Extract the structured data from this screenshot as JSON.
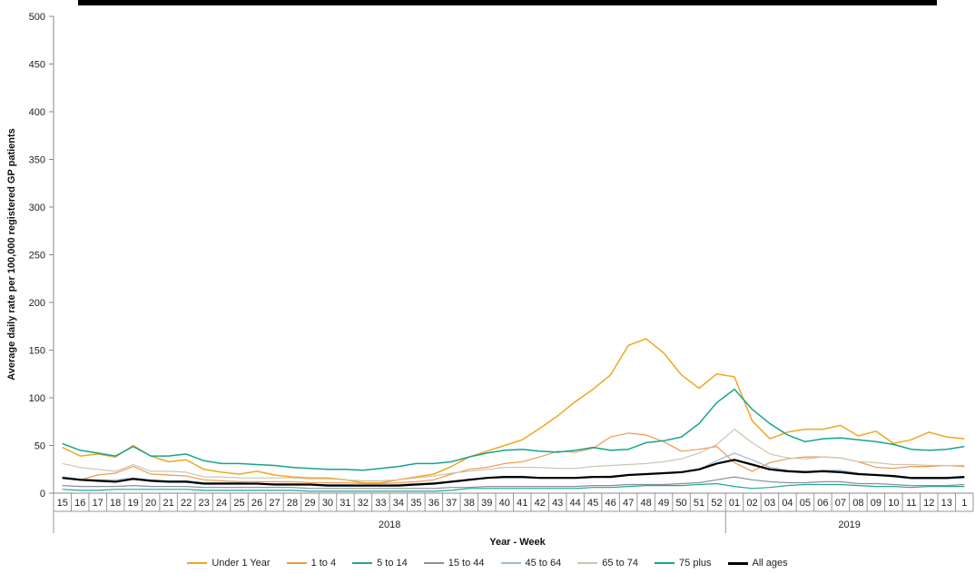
{
  "chart_data": {
    "type": "line",
    "ylabel": "Average daily rate per 100,000 registered GP patients",
    "xlabel": "Year - Week",
    "ylim": [
      0,
      500
    ],
    "yticks": [
      0,
      50,
      100,
      150,
      200,
      250,
      300,
      350,
      400,
      450,
      500
    ],
    "grid": false,
    "legend_position": "bottom",
    "x": [
      "15",
      "16",
      "17",
      "18",
      "19",
      "20",
      "21",
      "22",
      "23",
      "24",
      "25",
      "26",
      "27",
      "28",
      "29",
      "30",
      "31",
      "32",
      "33",
      "34",
      "35",
      "36",
      "37",
      "38",
      "39",
      "40",
      "41",
      "42",
      "43",
      "44",
      "45",
      "46",
      "47",
      "48",
      "49",
      "50",
      "51",
      "52",
      "01",
      "02",
      "03",
      "04",
      "05",
      "06",
      "07",
      "08",
      "09",
      "10",
      "11",
      "12",
      "13",
      "1"
    ],
    "year_groups": [
      {
        "label": "2018",
        "start": 0,
        "end": 37
      },
      {
        "label": "2019",
        "start": 38,
        "end": 51
      }
    ],
    "series": [
      {
        "name": "Under 1 Year",
        "color": "#f0a71f",
        "width": 1.5,
        "values": [
          48,
          39,
          41,
          38,
          50,
          39,
          33,
          35,
          25,
          22,
          20,
          23,
          19,
          17,
          16,
          16,
          14,
          11,
          11,
          14,
          17,
          20,
          28,
          38,
          44,
          50,
          56,
          68,
          81,
          96,
          109,
          124,
          155,
          162,
          147,
          124,
          110,
          125,
          122,
          76,
          57,
          64,
          67,
          67,
          71,
          60,
          65,
          52,
          56,
          64,
          59,
          57
        ]
      },
      {
        "name": "1 to 4",
        "color": "#ef9a4e",
        "width": 1.2,
        "values": [
          16,
          14,
          19,
          21,
          28,
          20,
          19,
          18,
          14,
          13,
          12,
          12,
          12,
          12,
          11,
          11,
          11,
          10,
          10,
          11,
          12,
          14,
          20,
          25,
          27,
          31,
          33,
          38,
          44,
          43,
          47,
          59,
          63,
          61,
          54,
          44,
          46,
          49,
          32,
          23,
          32,
          36,
          38,
          38,
          37,
          33,
          27,
          26,
          28,
          28,
          29,
          28
        ]
      },
      {
        "name": "5 to 14",
        "color": "#1fa898",
        "width": 1.2,
        "values": [
          4,
          3,
          3,
          4,
          4,
          4,
          4,
          4,
          3,
          3,
          3,
          3,
          3,
          3,
          2,
          2,
          2,
          2,
          2,
          2,
          2,
          2,
          3,
          5,
          5,
          5,
          5,
          5,
          5,
          5,
          6,
          6,
          7,
          8,
          8,
          8,
          9,
          10,
          7,
          5,
          6,
          8,
          9,
          9,
          9,
          8,
          7,
          7,
          6,
          7,
          7,
          7
        ]
      },
      {
        "name": "15 to 44",
        "color": "#8a8f9a",
        "width": 1.2,
        "values": [
          8,
          7,
          7,
          7,
          8,
          7,
          7,
          7,
          6,
          6,
          6,
          6,
          6,
          6,
          5,
          5,
          5,
          5,
          5,
          5,
          5,
          5,
          6,
          6,
          7,
          7,
          7,
          7,
          7,
          7,
          8,
          8,
          9,
          9,
          9,
          10,
          11,
          14,
          17,
          14,
          12,
          11,
          11,
          12,
          12,
          10,
          10,
          9,
          8,
          8,
          8,
          9
        ]
      },
      {
        "name": "45 to 64",
        "color": "#9fbad3",
        "width": 1.2,
        "values": [
          17,
          15,
          14,
          14,
          16,
          14,
          13,
          13,
          11,
          11,
          11,
          10,
          10,
          10,
          9,
          9,
          9,
          8,
          8,
          9,
          10,
          11,
          12,
          15,
          16,
          16,
          16,
          16,
          16,
          16,
          17,
          18,
          19,
          20,
          21,
          22,
          25,
          34,
          42,
          35,
          27,
          24,
          23,
          24,
          24,
          21,
          19,
          17,
          15,
          15,
          15,
          16
        ]
      },
      {
        "name": "65 to 74",
        "color": "#cbc6b1",
        "width": 1.2,
        "values": [
          31,
          27,
          25,
          23,
          30,
          23,
          23,
          22,
          17,
          17,
          16,
          16,
          16,
          16,
          15,
          15,
          14,
          13,
          13,
          14,
          16,
          18,
          21,
          23,
          25,
          27,
          27,
          27,
          26,
          26,
          28,
          29,
          30,
          31,
          33,
          36,
          42,
          51,
          67,
          53,
          41,
          37,
          36,
          38,
          37,
          33,
          32,
          30,
          30,
          29,
          29,
          29
        ]
      },
      {
        "name": "75 plus",
        "color": "#14a58e",
        "width": 1.5,
        "values": [
          52,
          45,
          42,
          39,
          49,
          39,
          39,
          41,
          34,
          31,
          31,
          30,
          29,
          27,
          26,
          25,
          25,
          24,
          26,
          28,
          31,
          31,
          33,
          38,
          42,
          45,
          46,
          44,
          43,
          45,
          48,
          45,
          46,
          53,
          55,
          59,
          73,
          95,
          109,
          88,
          73,
          61,
          54,
          57,
          58,
          56,
          54,
          51,
          46,
          45,
          46,
          49
        ]
      },
      {
        "name": "All ages",
        "color": "#000000",
        "width": 2.2,
        "values": [
          16,
          14,
          13,
          12,
          15,
          13,
          12,
          12,
          10,
          10,
          10,
          10,
          9,
          9,
          9,
          8,
          8,
          8,
          8,
          8,
          9,
          10,
          12,
          14,
          16,
          17,
          17,
          16,
          16,
          16,
          17,
          17,
          19,
          20,
          21,
          22,
          25,
          31,
          35,
          30,
          25,
          23,
          22,
          23,
          22,
          20,
          19,
          18,
          16,
          16,
          16,
          17
        ]
      }
    ]
  }
}
